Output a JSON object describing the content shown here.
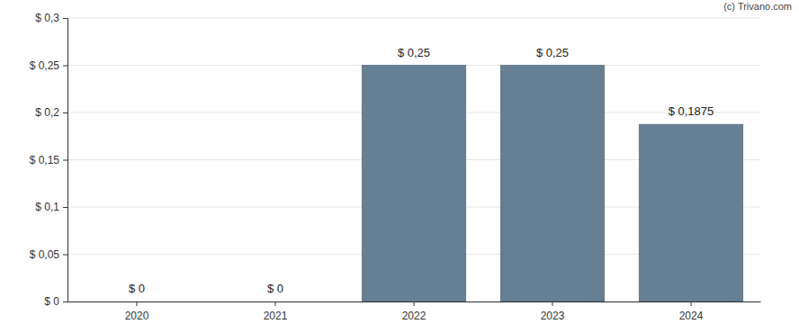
{
  "chart_data": {
    "type": "bar",
    "categories": [
      "2020",
      "2021",
      "2022",
      "2023",
      "2024"
    ],
    "values": [
      0,
      0,
      0.25,
      0.25,
      0.1875
    ],
    "value_labels": [
      "$ 0",
      "$ 0",
      "$ 0,25",
      "$ 0,25",
      "$ 0,1875"
    ],
    "data_labels": true,
    "color": "#667f93",
    "ylim": [
      0,
      0.3
    ],
    "yticks": [
      {
        "value": 0,
        "label": "$ 0"
      },
      {
        "value": 0.05,
        "label": "$ 0,05"
      },
      {
        "value": 0.1,
        "label": "$ 0,1"
      },
      {
        "value": 0.15,
        "label": "$ 0,15"
      },
      {
        "value": 0.2,
        "label": "$ 0,2"
      },
      {
        "value": 0.25,
        "label": "$ 0,25"
      },
      {
        "value": 0.3,
        "label": "$ 0,3"
      }
    ],
    "grid": true,
    "annotations": [
      "(c) Trivano.com"
    ]
  }
}
